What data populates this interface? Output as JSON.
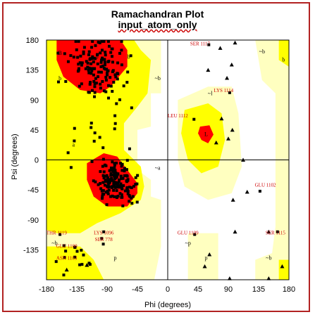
{
  "chart_data": {
    "type": "scatter",
    "title": "Ramachandran Plot",
    "subtitle": "input_atom_only",
    "xlabel": "Phi (degrees)",
    "ylabel": "Psi (degrees)",
    "xlim": [
      -180,
      180
    ],
    "ylim": [
      -180,
      180
    ],
    "xticks": [
      -180,
      -135,
      -90,
      -45,
      0,
      45,
      90,
      135,
      180
    ],
    "yticks": [
      180,
      135,
      90,
      45,
      0,
      -45,
      -90,
      -135
    ],
    "region_labels": [
      {
        "text": "B",
        "phi": -160,
        "psi": 158
      },
      {
        "text": "b",
        "phi": -105,
        "psi": 152
      },
      {
        "text": "b",
        "phi": -58,
        "psi": 152
      },
      {
        "text": "~b",
        "phi": -15,
        "psi": 120
      },
      {
        "text": "b",
        "phi": -160,
        "psi": 120
      },
      {
        "text": "~l",
        "phi": 63,
        "psi": 97
      },
      {
        "text": "L",
        "phi": 57,
        "psi": 36
      },
      {
        "text": "a",
        "phi": -140,
        "psi": 20
      },
      {
        "text": "A",
        "phi": -88,
        "psi": -30
      },
      {
        "text": "~a",
        "phi": -15,
        "psi": -15
      },
      {
        "text": "~b",
        "phi": -168,
        "psi": -128
      },
      {
        "text": "~p",
        "phi": 30,
        "psi": -128
      },
      {
        "text": "p",
        "phi": -78,
        "psi": -150
      },
      {
        "text": "p",
        "phi": 57,
        "psi": -150
      },
      {
        "text": "~b",
        "phi": 140,
        "psi": 160
      },
      {
        "text": "b",
        "phi": 172,
        "psi": 148
      },
      {
        "text": "~b",
        "phi": 150,
        "psi": -150
      }
    ],
    "residue_labels": [
      {
        "text": "SER 1117",
        "phi": 48,
        "psi": 172
      },
      {
        "text": "LYS 1114",
        "phi": 83,
        "psi": 102
      },
      {
        "text": "LEU 1112",
        "phi": 15,
        "psi": 64
      },
      {
        "text": "GLU 1102",
        "phi": 145,
        "psi": -40
      },
      {
        "text": "THR 1119",
        "phi": -165,
        "psi": -112
      },
      {
        "text": "LYS 1096",
        "phi": -95,
        "psi": -112
      },
      {
        "text": "SER 778",
        "phi": -95,
        "psi": -122
      },
      {
        "text": "GLU 1109",
        "phi": 30,
        "psi": -112
      },
      {
        "text": "SER 1115",
        "phi": 160,
        "psi": -112
      },
      {
        "text": "GLU 1100",
        "phi": -150,
        "psi": -132
      },
      {
        "text": "ASN 1103",
        "phi": -150,
        "psi": -150
      }
    ],
    "residue_points": [
      {
        "phi": 61,
        "psi": 173
      },
      {
        "phi": 92,
        "psi": 101
      },
      {
        "phi": 39,
        "psi": 61
      },
      {
        "phi": 137,
        "psi": -47
      },
      {
        "phi": -160,
        "psi": -112
      },
      {
        "phi": -95,
        "psi": -108
      },
      {
        "phi": -98,
        "psi": -118
      },
      {
        "phi": 40,
        "psi": -112
      },
      {
        "phi": 163,
        "psi": -108
      },
      {
        "phi": -138,
        "psi": -131
      },
      {
        "phi": -138,
        "psi": -146
      }
    ],
    "glycine_points": [
      {
        "phi": 95,
        "psi": 143
      },
      {
        "phi": 88,
        "psi": 123
      },
      {
        "phi": 78,
        "psi": 168
      },
      {
        "phi": 100,
        "psi": 176
      },
      {
        "phi": 80,
        "psi": 62
      },
      {
        "phi": 72,
        "psi": 26
      },
      {
        "phi": 90,
        "psi": 32
      },
      {
        "phi": 96,
        "psi": 45
      },
      {
        "phi": 118,
        "psi": -48
      },
      {
        "phi": 97,
        "psi": -60
      },
      {
        "phi": 100,
        "psi": -108
      },
      {
        "phi": 150,
        "psi": -108
      },
      {
        "phi": 92,
        "psi": -178
      },
      {
        "phi": 150,
        "psi": -178
      },
      {
        "phi": 170,
        "psi": -160
      },
      {
        "phi": 55,
        "psi": -160
      },
      {
        "phi": 62,
        "psi": -142
      },
      {
        "phi": -120,
        "psi": -158
      },
      {
        "phi": -150,
        "psi": -165
      },
      {
        "phi": 112,
        "psi": 0
      },
      {
        "phi": 60,
        "psi": 135
      }
    ]
  },
  "colors": {
    "core": "#ff0000",
    "allowed": "#ffff00",
    "generous": "#ffffc0",
    "disallowed": "#ffffff",
    "frame": "#b22222",
    "label": "#cc0000"
  }
}
